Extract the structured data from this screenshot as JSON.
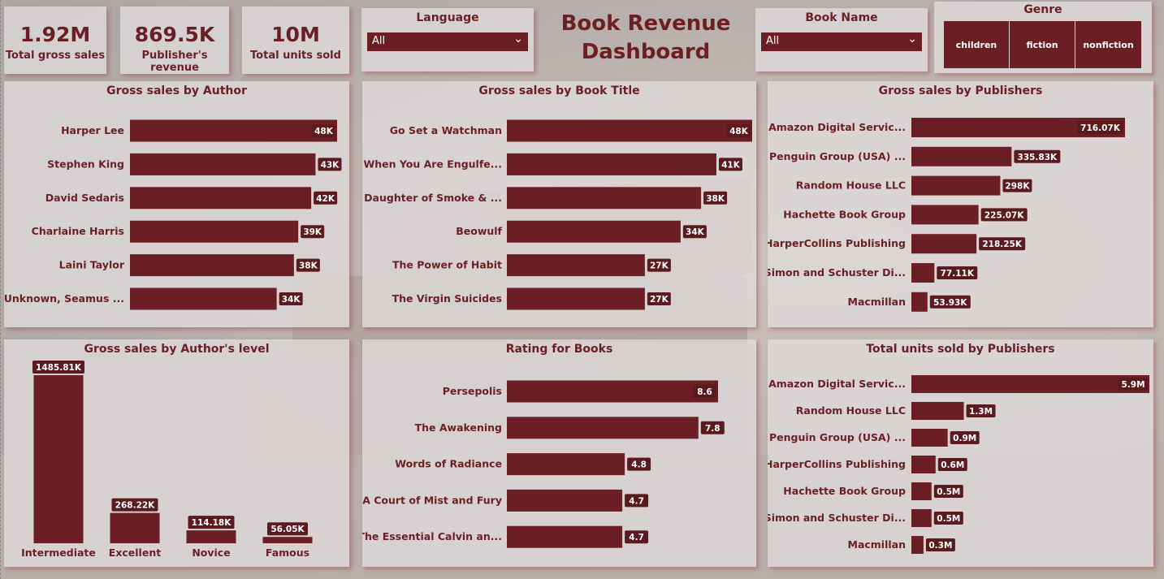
{
  "dashboard": {
    "title_line1": "Book Revenue",
    "title_line2": "Dashboard"
  },
  "colors": {
    "accent": "#6b1f24",
    "label_bg": "#5a1a1e",
    "card_bg": "#dedbdb"
  },
  "kpis": [
    {
      "value": "1.92M",
      "label": "Total gross sales"
    },
    {
      "value": "869.5K",
      "label": "Publisher's revenue"
    },
    {
      "value": "10M",
      "label": "Total units sold"
    }
  ],
  "slicers": {
    "language": {
      "title": "Language",
      "value": "All"
    },
    "book_name": {
      "title": "Book Name",
      "value": "All"
    },
    "genre": {
      "title": "Genre",
      "options": [
        "children",
        "fiction",
        "nonfiction"
      ]
    }
  },
  "chart_data": [
    {
      "id": "author",
      "type": "bar",
      "orientation": "horizontal",
      "title": "Gross sales by Author",
      "categories": [
        "Harper Lee",
        "Stephen King",
        "David Sedaris",
        "Charlaine Harris",
        "Laini Taylor",
        "Unknown, Seamus ..."
      ],
      "values": [
        48,
        43,
        42,
        39,
        38,
        34
      ],
      "labels": [
        "48K",
        "43K",
        "42K",
        "39K",
        "38K",
        "34K"
      ],
      "xlim": [
        0,
        48
      ]
    },
    {
      "id": "book_title",
      "type": "bar",
      "orientation": "horizontal",
      "title": "Gross sales by Book Title",
      "categories": [
        "Go Set a Watchman",
        "When You Are Engulfe...",
        "Daughter of Smoke & ...",
        "Beowulf",
        "The Power of Habit",
        "The Virgin Suicides"
      ],
      "values": [
        48,
        41,
        38,
        34,
        27,
        27
      ],
      "labels": [
        "48K",
        "41K",
        "38K",
        "34K",
        "27K",
        "27K"
      ],
      "xlim": [
        0,
        48
      ]
    },
    {
      "id": "publishers_sales",
      "type": "bar",
      "orientation": "horizontal",
      "title": "Gross sales by Publishers",
      "categories": [
        "Amazon Digital Servic...",
        "Penguin Group (USA) ...",
        "Random House LLC",
        "Hachette Book Group",
        "HarperCollins Publishing",
        "Simon and Schuster Di...",
        "Macmillan"
      ],
      "values": [
        716.07,
        335.83,
        298,
        225.07,
        218.25,
        77.11,
        53.93
      ],
      "labels": [
        "716.07K",
        "335.83K",
        "298K",
        "225.07K",
        "218.25K",
        "77.11K",
        "53.93K"
      ],
      "xlim": [
        0,
        716.07
      ]
    },
    {
      "id": "author_level",
      "type": "bar",
      "orientation": "vertical",
      "title": "Gross sales by Author's level",
      "categories": [
        "Intermediate",
        "Excellent",
        "Novice",
        "Famous"
      ],
      "values": [
        1485.81,
        268.22,
        114.18,
        56.05
      ],
      "labels": [
        "1485.81K",
        "268.22K",
        "114.18K",
        "56.05K"
      ],
      "ylim": [
        0,
        1485.81
      ]
    },
    {
      "id": "rating",
      "type": "bar",
      "orientation": "horizontal",
      "title": "Rating for Books",
      "categories": [
        "Persepolis",
        "The Awakening",
        "Words of Radiance",
        "A Court of Mist and Fury",
        "The Essential Calvin an..."
      ],
      "values": [
        8.6,
        7.8,
        4.8,
        4.7,
        4.7
      ],
      "labels": [
        "8.6",
        "7.8",
        "4.8",
        "4.7",
        "4.7"
      ],
      "xlim": [
        0,
        8.6
      ]
    },
    {
      "id": "publishers_units",
      "type": "bar",
      "orientation": "horizontal",
      "title": "Total units sold by Publishers",
      "categories": [
        "Amazon Digital Servic...",
        "Random House LLC",
        "Penguin Group (USA) ...",
        "HarperCollins Publishing",
        "Hachette Book Group",
        "Simon and Schuster Di...",
        "Macmillan"
      ],
      "values": [
        5.9,
        1.3,
        0.9,
        0.6,
        0.5,
        0.5,
        0.3
      ],
      "labels": [
        "5.9M",
        "1.3M",
        "0.9M",
        "0.6M",
        "0.5M",
        "0.5M",
        "0.3M"
      ],
      "xlim": [
        0,
        5.9
      ]
    }
  ]
}
